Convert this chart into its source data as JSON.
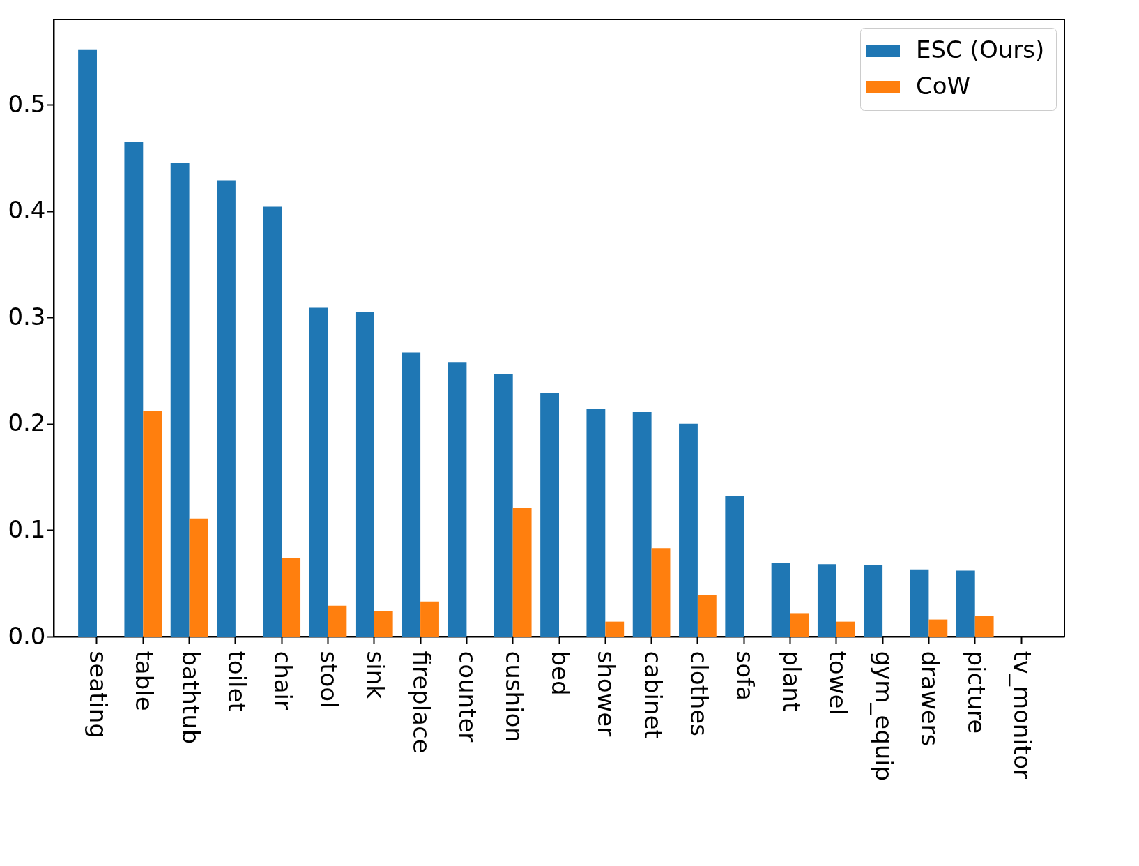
{
  "chart_data": {
    "type": "bar",
    "categories": [
      "seating",
      "table",
      "bathtub",
      "toilet",
      "chair",
      "stool",
      "sink",
      "fireplace",
      "counter",
      "cushion",
      "bed",
      "shower",
      "cabinet",
      "clothes",
      "sofa",
      "plant",
      "towel",
      "gym_equip",
      "drawers",
      "picture",
      "tv_monitor"
    ],
    "series": [
      {
        "name": "ESC (Ours)",
        "color": "#1f77b4",
        "values": [
          0.552,
          0.465,
          0.445,
          0.429,
          0.404,
          0.309,
          0.305,
          0.267,
          0.258,
          0.247,
          0.229,
          0.214,
          0.211,
          0.2,
          0.132,
          0.069,
          0.068,
          0.067,
          0.063,
          0.062,
          0
        ]
      },
      {
        "name": "CoW",
        "color": "#ff7f0e",
        "values": [
          0,
          0.212,
          0.111,
          0,
          0.074,
          0.029,
          0.024,
          0.033,
          0,
          0.121,
          0,
          0.014,
          0.083,
          0.039,
          0,
          0.022,
          0.014,
          0,
          0.016,
          0.019,
          0
        ]
      }
    ],
    "ylim": [
      0,
      0.58
    ],
    "yticks": [
      {
        "value": 0,
        "label": "0.0"
      },
      0.1,
      0.2,
      0.3,
      0.4,
      0.5
    ],
    "grid": false,
    "legend": "top right"
  }
}
